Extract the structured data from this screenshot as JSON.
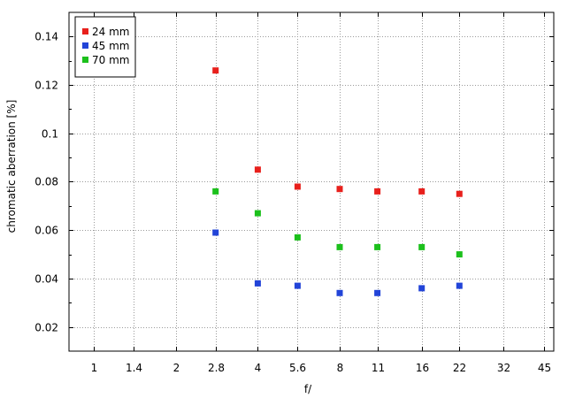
{
  "chart_data": {
    "type": "scatter",
    "title": "",
    "xlabel": "f/",
    "ylabel": "chromatic aberration [%]",
    "x_scale": "log2",
    "x_ticks": [
      "1",
      "1.4",
      "2",
      "2.8",
      "4",
      "5.6",
      "8",
      "11",
      "16",
      "22",
      "32",
      "45"
    ],
    "x": [
      "2.8",
      "4",
      "5.6",
      "8",
      "11",
      "16",
      "22"
    ],
    "ylim": [
      0.01,
      0.15
    ],
    "y_ticks": [
      0.02,
      0.04,
      0.06,
      0.08,
      0.1,
      0.12,
      0.14
    ],
    "y_tick_labels": [
      "0.02",
      "0.04",
      "0.06",
      "0.08",
      "0.1",
      "0.12",
      "0.14"
    ],
    "grid": true,
    "legend_position": "top-left",
    "series": [
      {
        "name": "24 mm",
        "color": "#e8201c",
        "values": [
          0.126,
          0.085,
          0.078,
          0.077,
          0.076,
          0.076,
          0.075
        ]
      },
      {
        "name": "45 mm",
        "color": "#2244d8",
        "values": [
          0.059,
          0.038,
          0.037,
          0.034,
          0.034,
          0.036,
          0.037
        ]
      },
      {
        "name": "70 mm",
        "color": "#1cc01c",
        "values": [
          0.076,
          0.067,
          0.057,
          0.053,
          0.053,
          0.053,
          0.05
        ]
      }
    ]
  }
}
